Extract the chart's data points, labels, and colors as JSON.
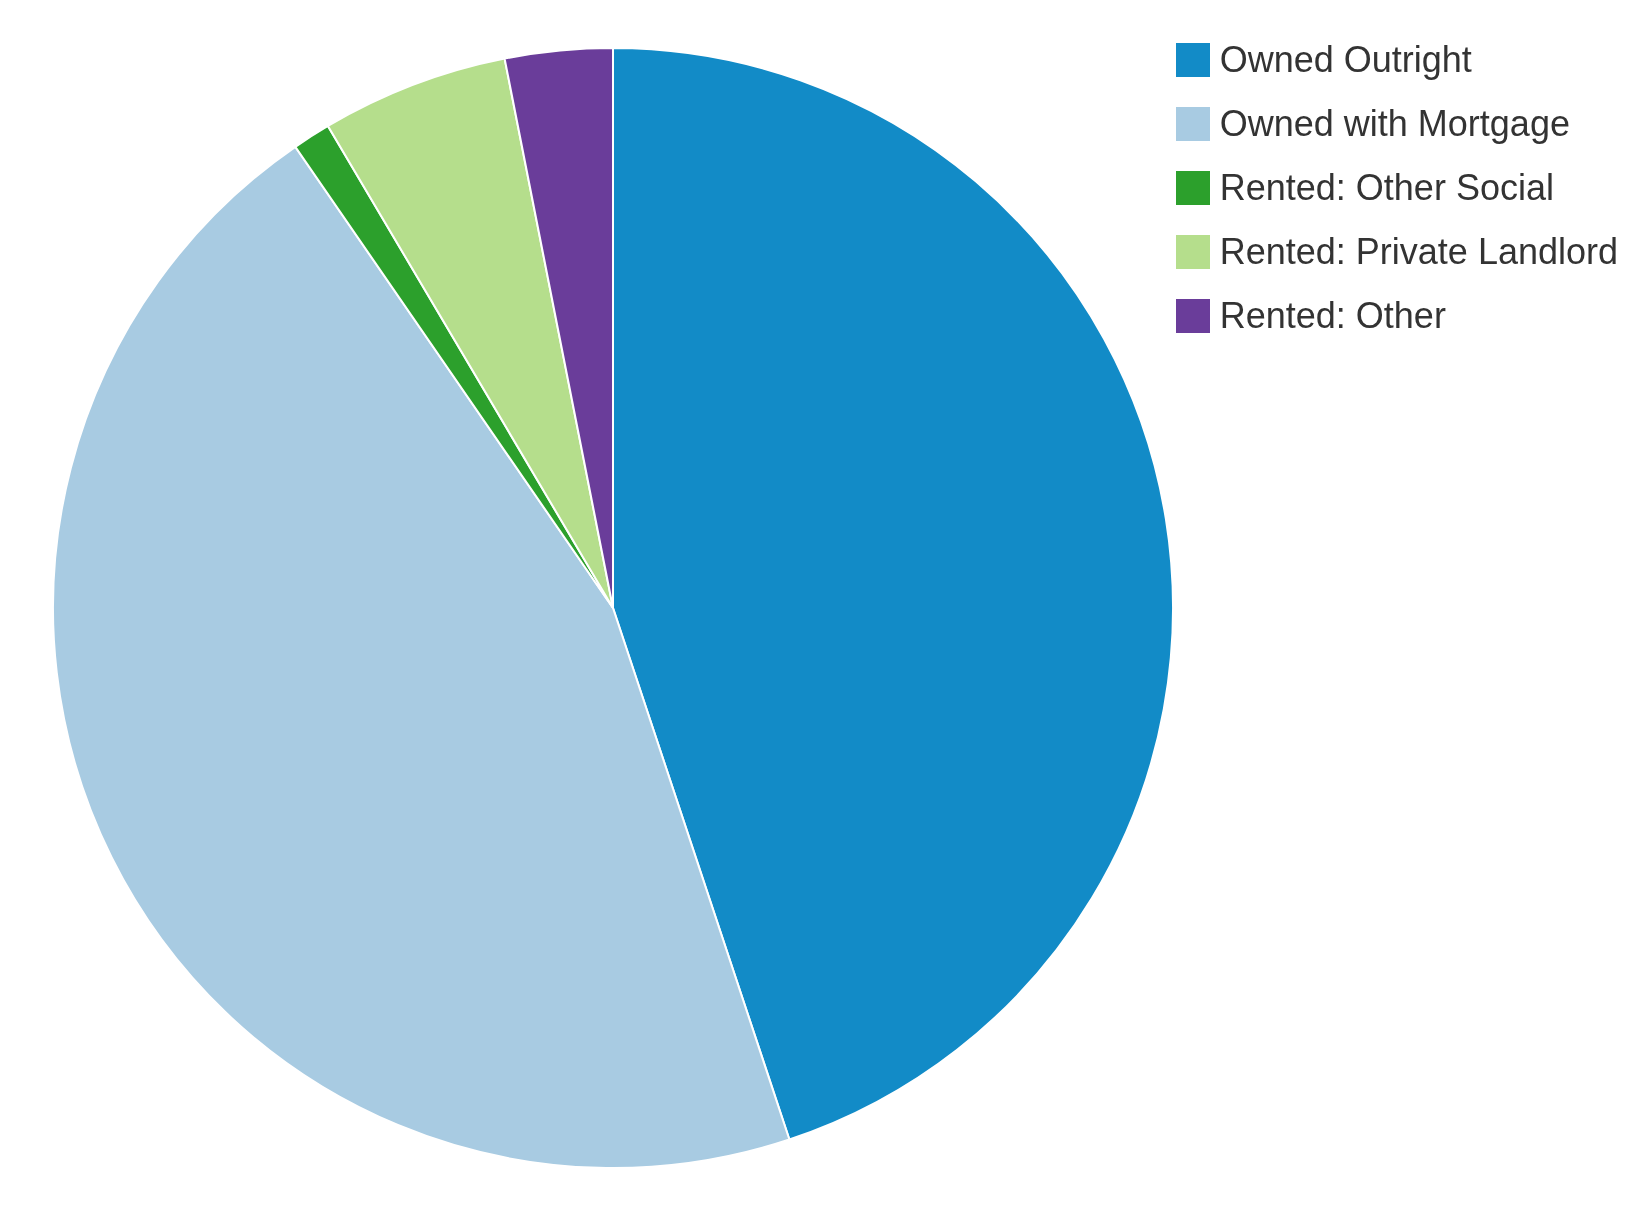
{
  "chart_data": {
    "type": "pie",
    "categories": [
      "Owned Outright",
      "Owned with Mortgage",
      "Rented: Other Social",
      "Rented: Private Landlord",
      "Rented: Other"
    ],
    "values": [
      44.9,
      45.5,
      1.1,
      5.4,
      3.1
    ],
    "colors": [
      "#128bc7",
      "#a8cbe2",
      "#2ca02c",
      "#b5de8c",
      "#6a3d9a"
    ],
    "legend": "top right"
  }
}
